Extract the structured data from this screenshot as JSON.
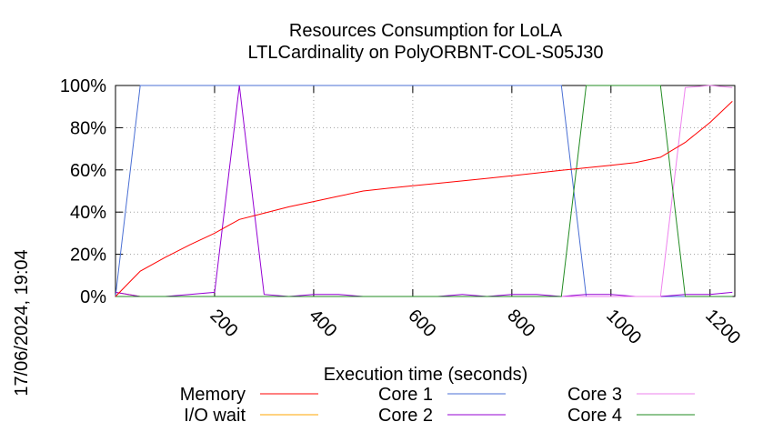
{
  "chart_data": {
    "type": "line",
    "title": "Resources Consumption for LoLA",
    "subtitle": "LTLCardinality on PolyORBNT-COL-S05J30",
    "xlabel": "Execution time (seconds)",
    "ylabel": "",
    "timestamp": "17/06/2024, 19:04",
    "xlim": [
      0,
      1250
    ],
    "ylim": [
      0,
      100
    ],
    "x_ticks": [
      200,
      400,
      600,
      800,
      1000,
      1200
    ],
    "x_tick_labels": [
      "200",
      "400",
      "600",
      "800",
      "1000",
      "1200"
    ],
    "y_ticks": [
      0,
      20,
      40,
      60,
      80,
      100
    ],
    "y_tick_labels": [
      "0%",
      "20%",
      "40%",
      "60%",
      "80%",
      "100%"
    ],
    "grid": true,
    "legend_position": "bottom",
    "series": [
      {
        "name": "Memory",
        "color": "#ff0000",
        "x": [
          0,
          50,
          100,
          150,
          200,
          250,
          300,
          350,
          400,
          450,
          500,
          550,
          600,
          650,
          700,
          750,
          800,
          850,
          900,
          950,
          1000,
          1050,
          1100,
          1150,
          1200,
          1245
        ],
        "y": [
          0,
          12,
          18.5,
          24.5,
          30,
          36.5,
          39.5,
          42.5,
          45,
          47.5,
          50,
          51.3,
          52.5,
          53.6,
          54.8,
          56,
          57.2,
          58.5,
          59.8,
          61,
          62.2,
          63.5,
          66,
          73,
          82.5,
          92.5
        ]
      },
      {
        "name": "I/O wait",
        "color": "#ffa500",
        "x": [
          0,
          50,
          100,
          1245
        ],
        "y": [
          2,
          0,
          0,
          0
        ]
      },
      {
        "name": "Core 1",
        "color": "#4a6fd4",
        "x": [
          0,
          50,
          100,
          900,
          950,
          1000,
          1245
        ],
        "y": [
          0,
          100,
          100,
          100,
          0,
          0,
          0
        ]
      },
      {
        "name": "Core 2",
        "color": "#9400d3",
        "x": [
          0,
          50,
          100,
          150,
          200,
          250,
          300,
          350,
          400,
          450,
          500,
          550,
          600,
          650,
          700,
          750,
          800,
          850,
          900,
          950,
          1000,
          1050,
          1100,
          1150,
          1200,
          1245
        ],
        "y": [
          2,
          0,
          0,
          1,
          2,
          100,
          1,
          0,
          1,
          1,
          0,
          0,
          0,
          0,
          1,
          0,
          1,
          1,
          0,
          1,
          1,
          0,
          0,
          1,
          1,
          2
        ]
      },
      {
        "name": "Core 3",
        "color": "#ee82ee",
        "x": [
          0,
          50,
          100,
          1100,
          1150,
          1200,
          1245
        ],
        "y": [
          0,
          0,
          0,
          0,
          99,
          100,
          99
        ]
      },
      {
        "name": "Core 4",
        "color": "#228b22",
        "x": [
          0,
          50,
          100,
          900,
          950,
          1000,
          1050,
          1100,
          1150,
          1200,
          1245
        ],
        "y": [
          0,
          0,
          0,
          0,
          100,
          100,
          100,
          100,
          0,
          0,
          0
        ]
      }
    ]
  }
}
